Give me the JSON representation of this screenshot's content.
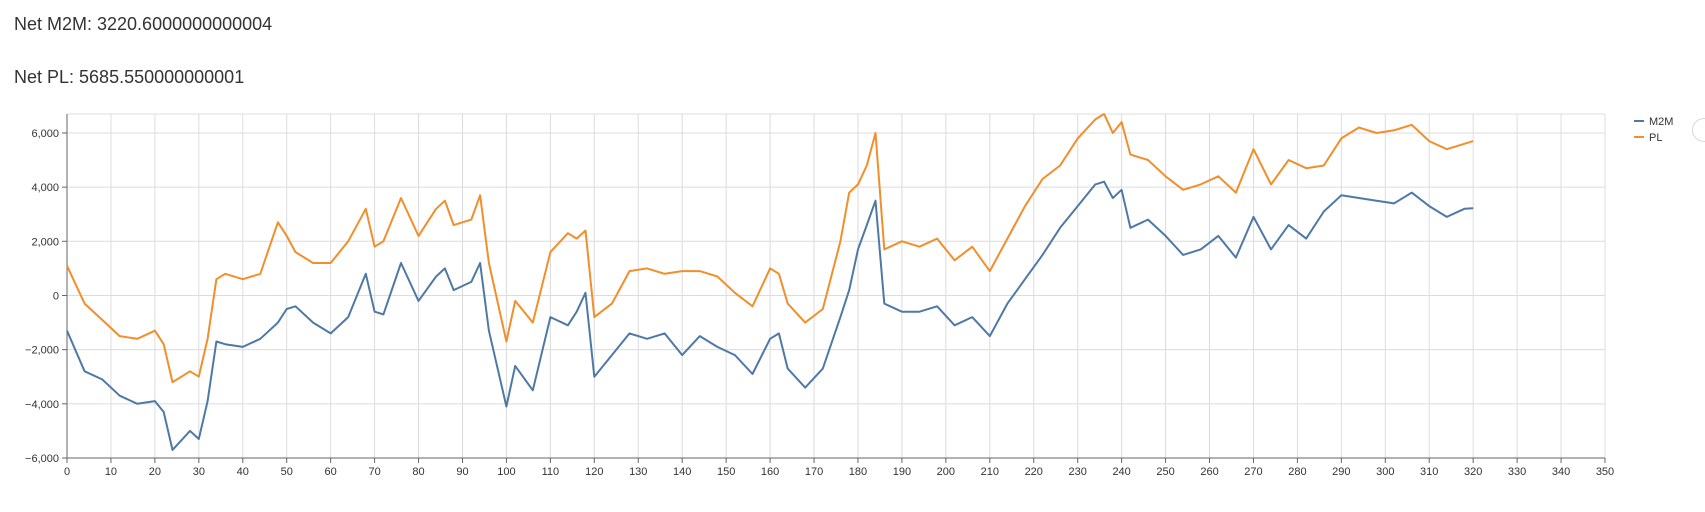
{
  "stats": {
    "m2m_label": "Net M2M: 3220.6000000000004",
    "pl_label": "Net PL: 5685.550000000001"
  },
  "chart_data": {
    "type": "line",
    "title": "",
    "xlabel": "",
    "ylabel": "",
    "xlim": [
      0,
      350
    ],
    "ylim": [
      -6000,
      6700
    ],
    "x_ticks": [
      0,
      10,
      20,
      30,
      40,
      50,
      60,
      70,
      80,
      90,
      100,
      110,
      120,
      130,
      140,
      150,
      160,
      170,
      180,
      190,
      200,
      210,
      220,
      230,
      240,
      250,
      260,
      270,
      280,
      290,
      300,
      310,
      320,
      330,
      340,
      350
    ],
    "y_ticks": [
      -6000,
      -4000,
      -2000,
      0,
      2000,
      4000,
      6000
    ],
    "y_tick_labels": [
      "−6,000",
      "−4,000",
      "−2,000",
      "0",
      "2,000",
      "4,000",
      "6,000"
    ],
    "grid": true,
    "legend_position": "top-right",
    "series": [
      {
        "name": "M2M",
        "color": "#4e79a7",
        "x": [
          0,
          4,
          8,
          12,
          16,
          20,
          22,
          24,
          28,
          30,
          32,
          34,
          36,
          40,
          44,
          48,
          50,
          52,
          56,
          60,
          64,
          68,
          70,
          72,
          76,
          80,
          84,
          86,
          88,
          92,
          94,
          96,
          100,
          102,
          106,
          110,
          114,
          116,
          118,
          120,
          124,
          128,
          132,
          136,
          140,
          144,
          148,
          152,
          156,
          160,
          162,
          164,
          168,
          172,
          176,
          178,
          180,
          182,
          184,
          186,
          190,
          194,
          198,
          202,
          206,
          210,
          214,
          218,
          222,
          226,
          230,
          234,
          236,
          238,
          240,
          242,
          246,
          250,
          254,
          258,
          262,
          266,
          270,
          274,
          278,
          282,
          286,
          290,
          294,
          298,
          302,
          306,
          310,
          314,
          318,
          320
        ],
        "y": [
          -1300,
          -2800,
          -3100,
          -3700,
          -4000,
          -3900,
          -4300,
          -5700,
          -5000,
          -5300,
          -3900,
          -1700,
          -1800,
          -1900,
          -1600,
          -1000,
          -500,
          -400,
          -1000,
          -1400,
          -800,
          800,
          -600,
          -700,
          1200,
          -200,
          700,
          1000,
          200,
          500,
          1200,
          -1300,
          -4100,
          -2600,
          -3500,
          -800,
          -1100,
          -600,
          100,
          -3000,
          -2200,
          -1400,
          -1600,
          -1400,
          -2200,
          -1500,
          -1900,
          -2200,
          -2900,
          -1600,
          -1400,
          -2700,
          -3400,
          -2700,
          -800,
          200,
          1700,
          2600,
          3500,
          -300,
          -600,
          -600,
          -400,
          -1100,
          -800,
          -1500,
          -300,
          600,
          1500,
          2500,
          3300,
          4100,
          4200,
          3600,
          3900,
          2500,
          2800,
          2200,
          1500,
          1700,
          2200,
          1400,
          2900,
          1700,
          2600,
          2100,
          3100,
          3700,
          3600,
          3500,
          3400,
          3800,
          3300,
          2900,
          3200,
          3220
        ]
      },
      {
        "name": "PL",
        "color": "#f28e2b",
        "x": [
          0,
          4,
          8,
          12,
          16,
          20,
          22,
          24,
          28,
          30,
          32,
          34,
          36,
          40,
          44,
          48,
          50,
          52,
          56,
          60,
          64,
          68,
          70,
          72,
          76,
          80,
          84,
          86,
          88,
          92,
          94,
          96,
          100,
          102,
          106,
          110,
          114,
          116,
          118,
          120,
          124,
          128,
          132,
          136,
          140,
          144,
          148,
          152,
          156,
          160,
          162,
          164,
          168,
          172,
          176,
          178,
          180,
          182,
          184,
          186,
          190,
          194,
          198,
          202,
          206,
          210,
          214,
          218,
          222,
          226,
          230,
          234,
          236,
          238,
          240,
          242,
          246,
          250,
          254,
          258,
          262,
          266,
          270,
          274,
          278,
          282,
          286,
          290,
          294,
          298,
          302,
          306,
          310,
          314,
          318,
          320
        ],
        "y": [
          1100,
          -300,
          -900,
          -1500,
          -1600,
          -1300,
          -1800,
          -3200,
          -2800,
          -3000,
          -1600,
          600,
          800,
          600,
          800,
          2700,
          2200,
          1600,
          1200,
          1200,
          2000,
          3200,
          1800,
          2000,
          3600,
          2200,
          3200,
          3500,
          2600,
          2800,
          3700,
          1200,
          -1700,
          -200,
          -1000,
          1600,
          2300,
          2100,
          2400,
          -800,
          -300,
          900,
          1000,
          800,
          900,
          900,
          700,
          100,
          -400,
          1000,
          800,
          -300,
          -1000,
          -500,
          2000,
          3800,
          4100,
          4800,
          6000,
          1700,
          2000,
          1800,
          2100,
          1300,
          1800,
          900,
          2100,
          3300,
          4300,
          4800,
          5800,
          6500,
          6700,
          6000,
          6400,
          5200,
          5000,
          4400,
          3900,
          4100,
          4400,
          3800,
          5400,
          4100,
          5000,
          4700,
          4800,
          5800,
          6200,
          6000,
          6100,
          6300,
          5700,
          5400,
          5600,
          5700
        ]
      }
    ]
  }
}
